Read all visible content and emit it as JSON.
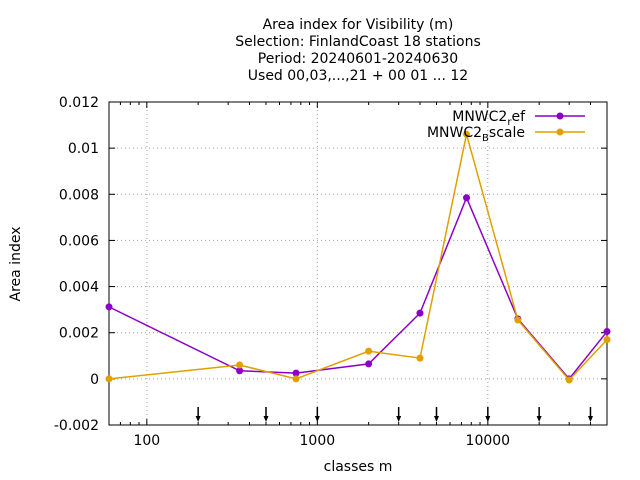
{
  "chart_data": {
    "type": "line",
    "title_lines": [
      "Area index  for Visibility (m)",
      "Selection: FinlandCoast      18 stations",
      "Period: 20240601-20240630",
      "Used 00,03,...,21 + 00 01 ... 12"
    ],
    "xlabel": "classes m",
    "ylabel": "Area index",
    "x_scale": "log",
    "xlim": [
      60,
      50000
    ],
    "ylim": [
      -0.002,
      0.012
    ],
    "x_ticks": [
      100,
      1000,
      10000
    ],
    "x_tick_labels": [
      "100",
      "1000",
      "10000"
    ],
    "y_ticks": [
      -0.002,
      0,
      0.002,
      0.004,
      0.006,
      0.008,
      0.01,
      0.012
    ],
    "y_tick_labels": [
      "-0.002",
      "0",
      "0.002",
      "0.004",
      "0.006",
      "0.008",
      "0.01",
      "0.012"
    ],
    "grid": true,
    "legend_position": "top-right",
    "class_markers": [
      200,
      500,
      1000,
      3000,
      5000,
      10000,
      20000,
      40000
    ],
    "x": [
      60,
      350,
      750,
      2000,
      4000,
      7500,
      15000,
      30000,
      50000
    ],
    "series": [
      {
        "name_main": "MNWC2",
        "name_sub": "r",
        "name_tail": "ef",
        "color": "#8b00c8",
        "values": [
          0.00312,
          0.00035,
          0.00025,
          0.00065,
          0.00285,
          0.00785,
          0.0026,
          0.0,
          0.00205
        ]
      },
      {
        "name_main": "MNWC2",
        "name_sub": "B",
        "name_tail": "scale",
        "color": "#e0a000",
        "values": [
          0.0,
          0.0006,
          0.0,
          0.0012,
          0.0009,
          0.0106,
          0.00255,
          -5e-05,
          0.0017
        ]
      }
    ]
  }
}
